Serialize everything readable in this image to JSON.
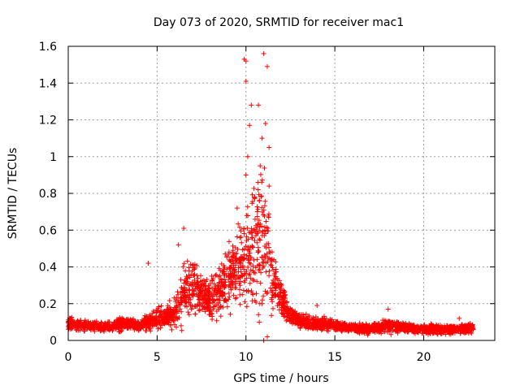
{
  "chart_data": {
    "type": "scatter",
    "title": "Day 073 of 2020, SRMTID for receiver mac1",
    "xlabel": "GPS time / hours",
    "ylabel": "SRMTID / TECUs",
    "xlim": [
      0,
      24
    ],
    "ylim": [
      0,
      1.6
    ],
    "x_ticks": [
      0,
      5,
      10,
      15,
      20
    ],
    "y_ticks": [
      0,
      0.2,
      0.4,
      0.6,
      0.8,
      1,
      1.2,
      1.4,
      1.6
    ],
    "x_tick_labels": [
      "0",
      "5",
      "10",
      "15",
      "20"
    ],
    "y_tick_labels": [
      "0",
      "0.2",
      "0.4",
      "0.6",
      "0.8",
      "1",
      "1.2",
      "1.4",
      "1.6"
    ],
    "grid": true,
    "marker": "plus",
    "series": [
      {
        "name": "SRMTID",
        "color": "#ff0000",
        "envelope": {
          "t": [
            0,
            0.5,
            1,
            1.5,
            2,
            2.5,
            3,
            3.5,
            4,
            4.5,
            5,
            5.5,
            6,
            6.5,
            7,
            7.5,
            8,
            8.5,
            9,
            9.5,
            10,
            10.5,
            11,
            11.5,
            12,
            12.5,
            13,
            13.5,
            14,
            15,
            16,
            17,
            18,
            19,
            20,
            21,
            22,
            22.8
          ],
          "mean": [
            0.09,
            0.08,
            0.08,
            0.08,
            0.07,
            0.08,
            0.09,
            0.09,
            0.08,
            0.1,
            0.12,
            0.13,
            0.15,
            0.27,
            0.3,
            0.25,
            0.22,
            0.28,
            0.35,
            0.38,
            0.42,
            0.5,
            0.55,
            0.35,
            0.22,
            0.14,
            0.11,
            0.1,
            0.09,
            0.08,
            0.07,
            0.06,
            0.08,
            0.07,
            0.06,
            0.06,
            0.06,
            0.07
          ],
          "spread": [
            0.03,
            0.02,
            0.02,
            0.02,
            0.02,
            0.02,
            0.03,
            0.02,
            0.02,
            0.04,
            0.05,
            0.04,
            0.06,
            0.12,
            0.12,
            0.08,
            0.08,
            0.1,
            0.13,
            0.15,
            0.2,
            0.28,
            0.3,
            0.15,
            0.07,
            0.04,
            0.03,
            0.03,
            0.03,
            0.02,
            0.02,
            0.02,
            0.03,
            0.02,
            0.02,
            0.02,
            0.02,
            0.02
          ],
          "samples_per_hour": 130
        },
        "notable_points": [
          [
            4.5,
            0.42
          ],
          [
            6.5,
            0.61
          ],
          [
            6.2,
            0.52
          ],
          [
            9.9,
            1.53
          ],
          [
            10.0,
            1.52
          ],
          [
            10.0,
            1.41
          ],
          [
            11.0,
            1.56
          ],
          [
            11.2,
            1.49
          ],
          [
            10.3,
            1.28
          ],
          [
            10.7,
            1.28
          ],
          [
            10.2,
            1.17
          ],
          [
            11.1,
            1.18
          ],
          [
            10.9,
            1.1
          ],
          [
            11.3,
            1.05
          ],
          [
            10.1,
            1.0
          ],
          [
            10.0,
            0.9
          ],
          [
            11.3,
            0.84
          ],
          [
            10.5,
            0.78
          ],
          [
            10.8,
            0.95
          ],
          [
            11.0,
            0.0
          ],
          [
            11.2,
            0.02
          ],
          [
            9.5,
            0.72
          ],
          [
            10.9,
            0.2
          ],
          [
            12.0,
            0.3
          ],
          [
            14.0,
            0.19
          ],
          [
            18.0,
            0.17
          ],
          [
            22.0,
            0.12
          ]
        ]
      }
    ]
  }
}
